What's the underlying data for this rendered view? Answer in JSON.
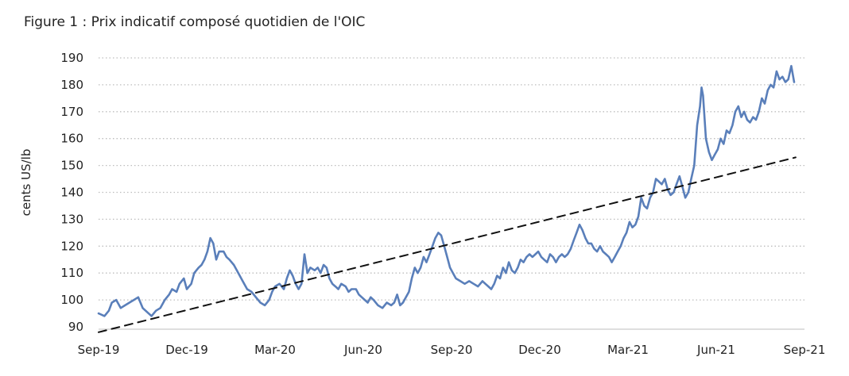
{
  "chart_data": {
    "type": "line",
    "title": "Figure 1 : Prix indicatif composé quotidien de l'OIC",
    "ylabel": "cents US/lb",
    "xlabel": "",
    "ylim": [
      90,
      190
    ],
    "yticks": [
      90,
      100,
      110,
      120,
      130,
      140,
      150,
      160,
      170,
      180,
      190
    ],
    "xticks": [
      "Sep-19",
      "Dec-19",
      "Mar-20",
      "Jun-20",
      "Sep-20",
      "Dec-20",
      "Mar-21",
      "Jun-21",
      "Sep-21"
    ],
    "grid": "horizontal-dotted",
    "series": [
      {
        "style": "solid",
        "color": "#5a7fba",
        "points": [
          [
            0.0,
            95
          ],
          [
            0.2,
            94
          ],
          [
            0.35,
            96
          ],
          [
            0.45,
            99
          ],
          [
            0.6,
            100
          ],
          [
            0.75,
            97
          ],
          [
            0.9,
            98
          ],
          [
            1.05,
            99
          ],
          [
            1.2,
            100
          ],
          [
            1.35,
            101
          ],
          [
            1.5,
            97
          ],
          [
            1.6,
            96
          ],
          [
            1.7,
            95
          ],
          [
            1.8,
            94
          ],
          [
            1.95,
            96
          ],
          [
            2.1,
            97
          ],
          [
            2.25,
            100
          ],
          [
            2.4,
            102
          ],
          [
            2.5,
            104
          ],
          [
            2.65,
            103
          ],
          [
            2.75,
            106
          ],
          [
            2.9,
            108
          ],
          [
            3.0,
            104
          ],
          [
            3.15,
            106
          ],
          [
            3.25,
            110
          ],
          [
            3.4,
            112
          ],
          [
            3.5,
            113
          ],
          [
            3.6,
            115
          ],
          [
            3.7,
            118
          ],
          [
            3.8,
            123
          ],
          [
            3.9,
            121
          ],
          [
            4.0,
            115
          ],
          [
            4.1,
            118
          ],
          [
            4.25,
            118
          ],
          [
            4.35,
            116
          ],
          [
            4.45,
            115
          ],
          [
            4.6,
            113
          ],
          [
            4.75,
            110
          ],
          [
            4.9,
            107
          ],
          [
            5.05,
            104
          ],
          [
            5.2,
            103
          ],
          [
            5.35,
            101
          ],
          [
            5.5,
            99
          ],
          [
            5.65,
            98
          ],
          [
            5.8,
            100
          ],
          [
            5.9,
            103
          ],
          [
            6.0,
            105
          ],
          [
            6.15,
            106
          ],
          [
            6.3,
            104
          ],
          [
            6.4,
            108
          ],
          [
            6.5,
            111
          ],
          [
            6.6,
            109
          ],
          [
            6.7,
            106
          ],
          [
            6.8,
            104
          ],
          [
            6.9,
            106
          ],
          [
            7.0,
            117
          ],
          [
            7.1,
            110
          ],
          [
            7.2,
            112
          ],
          [
            7.35,
            111
          ],
          [
            7.45,
            112
          ],
          [
            7.55,
            110
          ],
          [
            7.65,
            113
          ],
          [
            7.75,
            112
          ],
          [
            7.85,
            108
          ],
          [
            7.95,
            106
          ],
          [
            8.05,
            105
          ],
          [
            8.15,
            104
          ],
          [
            8.25,
            106
          ],
          [
            8.4,
            105
          ],
          [
            8.5,
            103
          ],
          [
            8.6,
            104
          ],
          [
            8.75,
            104
          ],
          [
            8.85,
            102
          ],
          [
            8.95,
            101
          ],
          [
            9.05,
            100
          ],
          [
            9.15,
            99
          ],
          [
            9.25,
            101
          ],
          [
            9.35,
            100
          ],
          [
            9.5,
            98
          ],
          [
            9.65,
            97
          ],
          [
            9.8,
            99
          ],
          [
            9.95,
            98
          ],
          [
            10.05,
            99
          ],
          [
            10.15,
            102
          ],
          [
            10.25,
            98
          ],
          [
            10.35,
            99
          ],
          [
            10.45,
            101
          ],
          [
            10.55,
            103
          ],
          [
            10.65,
            108
          ],
          [
            10.75,
            112
          ],
          [
            10.85,
            110
          ],
          [
            10.95,
            112
          ],
          [
            11.05,
            116
          ],
          [
            11.15,
            114
          ],
          [
            11.25,
            117
          ],
          [
            11.35,
            120
          ],
          [
            11.45,
            123
          ],
          [
            11.55,
            125
          ],
          [
            11.65,
            124
          ],
          [
            11.75,
            120
          ],
          [
            11.85,
            116
          ],
          [
            11.95,
            112
          ],
          [
            12.05,
            110
          ],
          [
            12.15,
            108
          ],
          [
            12.3,
            107
          ],
          [
            12.45,
            106
          ],
          [
            12.6,
            107
          ],
          [
            12.75,
            106
          ],
          [
            12.9,
            105
          ],
          [
            13.05,
            107
          ],
          [
            13.15,
            106
          ],
          [
            13.25,
            105
          ],
          [
            13.35,
            104
          ],
          [
            13.45,
            106
          ],
          [
            13.55,
            109
          ],
          [
            13.65,
            108
          ],
          [
            13.75,
            112
          ],
          [
            13.85,
            110
          ],
          [
            13.95,
            114
          ],
          [
            14.05,
            111
          ],
          [
            14.15,
            110
          ],
          [
            14.25,
            112
          ],
          [
            14.35,
            115
          ],
          [
            14.45,
            114
          ],
          [
            14.55,
            116
          ],
          [
            14.65,
            117
          ],
          [
            14.75,
            116
          ],
          [
            14.85,
            117
          ],
          [
            14.95,
            118
          ],
          [
            15.05,
            116
          ],
          [
            15.15,
            115
          ],
          [
            15.25,
            114
          ],
          [
            15.35,
            117
          ],
          [
            15.45,
            116
          ],
          [
            15.55,
            114
          ],
          [
            15.65,
            116
          ],
          [
            15.75,
            117
          ],
          [
            15.85,
            116
          ],
          [
            15.95,
            117
          ],
          [
            16.05,
            119
          ],
          [
            16.15,
            122
          ],
          [
            16.25,
            125
          ],
          [
            16.35,
            128
          ],
          [
            16.45,
            126
          ],
          [
            16.55,
            123
          ],
          [
            16.65,
            121
          ],
          [
            16.75,
            121
          ],
          [
            16.85,
            119
          ],
          [
            16.95,
            118
          ],
          [
            17.05,
            120
          ],
          [
            17.15,
            118
          ],
          [
            17.25,
            117
          ],
          [
            17.35,
            116
          ],
          [
            17.45,
            114
          ],
          [
            17.55,
            116
          ],
          [
            17.65,
            118
          ],
          [
            17.75,
            120
          ],
          [
            17.85,
            123
          ],
          [
            17.95,
            125
          ],
          [
            18.05,
            129
          ],
          [
            18.15,
            127
          ],
          [
            18.25,
            128
          ],
          [
            18.35,
            131
          ],
          [
            18.45,
            138
          ],
          [
            18.55,
            135
          ],
          [
            18.65,
            134
          ],
          [
            18.75,
            138
          ],
          [
            18.85,
            140
          ],
          [
            18.95,
            145
          ],
          [
            19.05,
            144
          ],
          [
            19.15,
            143
          ],
          [
            19.25,
            145
          ],
          [
            19.35,
            141
          ],
          [
            19.45,
            139
          ],
          [
            19.55,
            140
          ],
          [
            19.65,
            143
          ],
          [
            19.75,
            146
          ],
          [
            19.85,
            142
          ],
          [
            19.95,
            138
          ],
          [
            20.05,
            140
          ],
          [
            20.15,
            145
          ],
          [
            20.25,
            150
          ],
          [
            20.35,
            165
          ],
          [
            20.45,
            172
          ],
          [
            20.5,
            179
          ],
          [
            20.55,
            176
          ],
          [
            20.65,
            160
          ],
          [
            20.75,
            155
          ],
          [
            20.85,
            152
          ],
          [
            20.95,
            154
          ],
          [
            21.05,
            156
          ],
          [
            21.15,
            160
          ],
          [
            21.25,
            158
          ],
          [
            21.35,
            163
          ],
          [
            21.45,
            162
          ],
          [
            21.55,
            165
          ],
          [
            21.65,
            170
          ],
          [
            21.75,
            172
          ],
          [
            21.85,
            168
          ],
          [
            21.95,
            170
          ],
          [
            22.05,
            167
          ],
          [
            22.15,
            166
          ],
          [
            22.25,
            168
          ],
          [
            22.35,
            167
          ],
          [
            22.45,
            170
          ],
          [
            22.55,
            175
          ],
          [
            22.65,
            173
          ],
          [
            22.75,
            178
          ],
          [
            22.85,
            180
          ],
          [
            22.95,
            179
          ],
          [
            23.05,
            185
          ],
          [
            23.15,
            182
          ],
          [
            23.25,
            183
          ],
          [
            23.35,
            181
          ],
          [
            23.45,
            182
          ],
          [
            23.55,
            187
          ],
          [
            23.65,
            181
          ]
        ]
      },
      {
        "style": "dashed",
        "color": "#111111",
        "points": [
          [
            0.0,
            88
          ],
          [
            23.7,
            153
          ]
        ]
      }
    ]
  }
}
